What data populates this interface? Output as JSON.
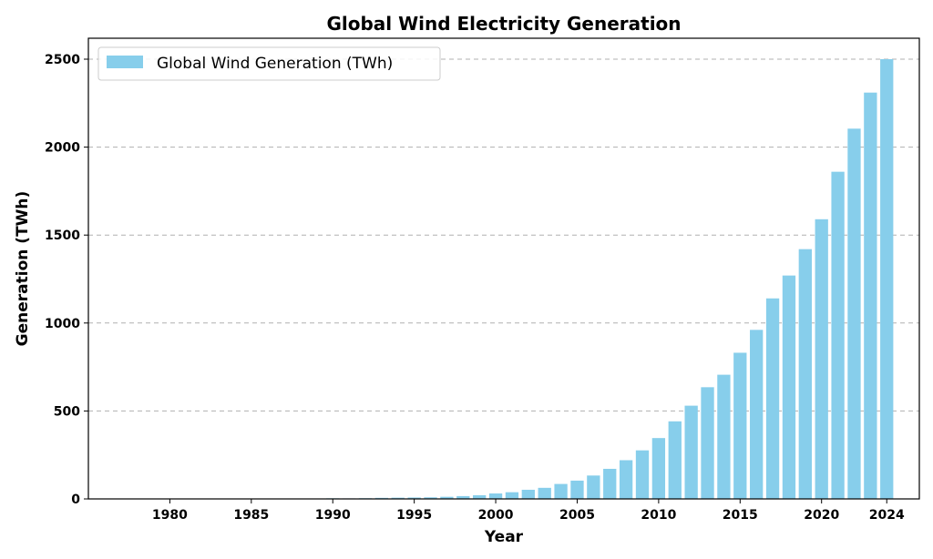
{
  "chart_data": {
    "type": "bar",
    "title": "Global Wind Electricity Generation",
    "xlabel": "Year",
    "ylabel": "Generation (TWh)",
    "xlim": [
      1975,
      2026
    ],
    "ylim": [
      0,
      2500
    ],
    "grid": "y-dashed",
    "legend_position": "top-left",
    "bar_color": "#87CEEB",
    "x_ticks": [
      1980,
      1985,
      1990,
      1995,
      2000,
      2005,
      2010,
      2015,
      2020,
      2024
    ],
    "y_ticks": [
      0,
      500,
      1000,
      1500,
      2000,
      2500
    ],
    "series": [
      {
        "name": "Global Wind Generation (TWh)",
        "x": [
          1980,
          1981,
          1982,
          1983,
          1984,
          1985,
          1986,
          1987,
          1988,
          1989,
          1990,
          1991,
          1992,
          1993,
          1994,
          1995,
          1996,
          1997,
          1998,
          1999,
          2000,
          2001,
          2002,
          2003,
          2004,
          2005,
          2006,
          2007,
          2008,
          2009,
          2010,
          2011,
          2012,
          2013,
          2014,
          2015,
          2016,
          2017,
          2018,
          2019,
          2020,
          2021,
          2022,
          2023,
          2024
        ],
        "values": [
          0.1,
          0.1,
          0.1,
          0.1,
          0.2,
          0.3,
          0.5,
          0.7,
          0.9,
          1.5,
          3.5,
          3,
          4,
          6,
          7,
          8,
          9,
          12,
          16,
          21,
          31,
          38,
          52,
          63,
          85,
          104,
          133,
          171,
          220,
          276,
          346,
          441,
          530,
          635,
          706,
          831,
          961,
          1140,
          1270,
          1420,
          1590,
          1860,
          2105,
          2310,
          2500
        ]
      }
    ]
  }
}
